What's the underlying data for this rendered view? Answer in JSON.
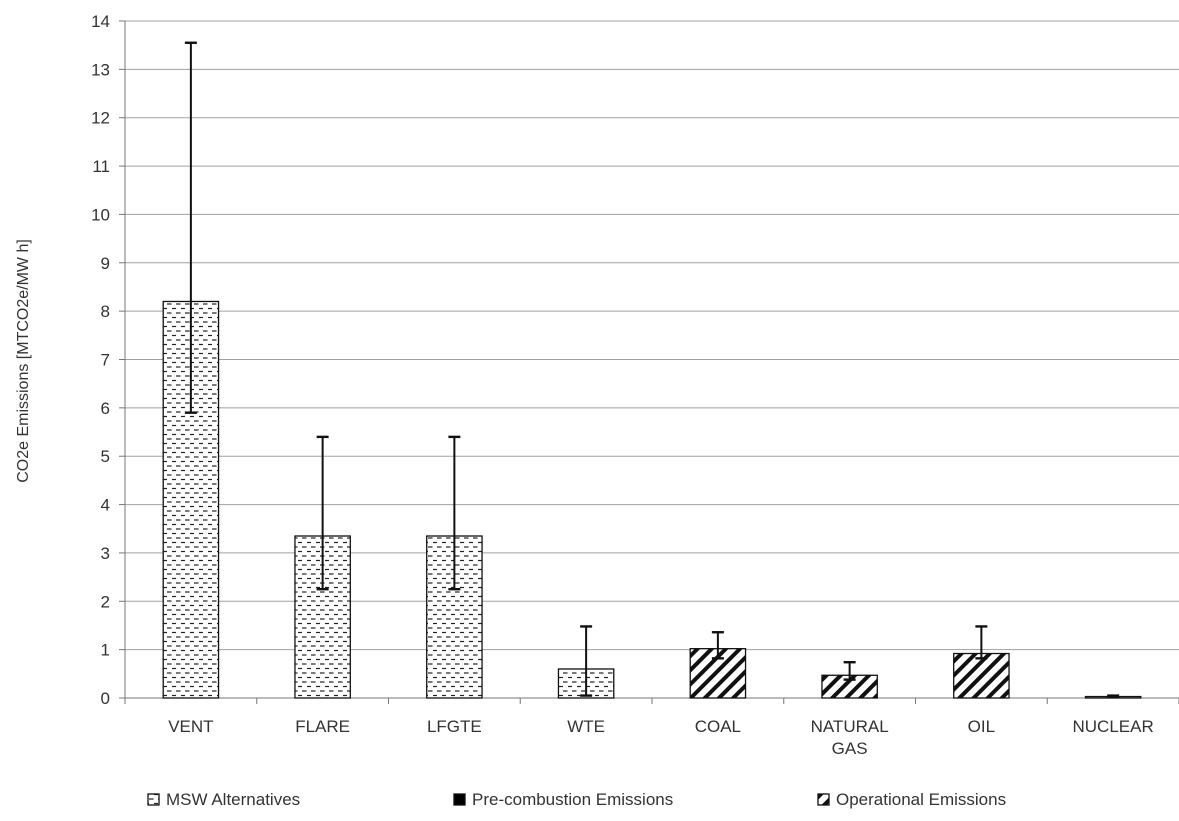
{
  "chart_data": {
    "type": "bar",
    "title": "",
    "xlabel": "",
    "ylabel": "CO2e Emissions  [MTCO2e/MW h]",
    "ylim": [
      0,
      14
    ],
    "yticks": [
      "0",
      "1",
      "2",
      "3",
      "4",
      "5",
      "6",
      "7",
      "8",
      "9",
      "10",
      "11",
      "12",
      "13",
      "14"
    ],
    "grid": true,
    "legend_placement": "bottom",
    "categories": [
      {
        "label": [
          "VENT"
        ],
        "value": 8.2,
        "err_low": 5.9,
        "err_high": 13.55,
        "pattern": "msw"
      },
      {
        "label": [
          "FLARE"
        ],
        "value": 3.35,
        "err_low": 2.25,
        "err_high": 5.4,
        "pattern": "msw"
      },
      {
        "label": [
          "LFGTE"
        ],
        "value": 3.35,
        "err_low": 2.25,
        "err_high": 5.4,
        "pattern": "msw"
      },
      {
        "label": [
          "WTE"
        ],
        "value": 0.6,
        "err_low": 0.05,
        "err_high": 1.48,
        "pattern": "msw"
      },
      {
        "label": [
          "COAL"
        ],
        "value": 1.02,
        "err_low": 0.82,
        "err_high": 1.36,
        "pattern": "operational"
      },
      {
        "label": [
          "NATURAL",
          "GAS"
        ],
        "value": 0.47,
        "err_low": 0.38,
        "err_high": 0.74,
        "pattern": "operational"
      },
      {
        "label": [
          "OIL"
        ],
        "value": 0.92,
        "err_low": 0.82,
        "err_high": 1.48,
        "pattern": "operational"
      },
      {
        "label": [
          "NUCLEAR"
        ],
        "value": 0.03,
        "err_low": 0.02,
        "err_high": 0.05,
        "pattern": "msw"
      }
    ],
    "legend": [
      {
        "name": "MSW Alternatives",
        "pattern": "msw"
      },
      {
        "name": "Pre-combustion Emissions",
        "pattern": "solid"
      },
      {
        "name": "Operational Emissions",
        "pattern": "operational"
      }
    ],
    "colors": {
      "grid": "#a0a0a0",
      "axis": "#777777",
      "bar_stroke": "#111111",
      "text": "#333333"
    }
  }
}
